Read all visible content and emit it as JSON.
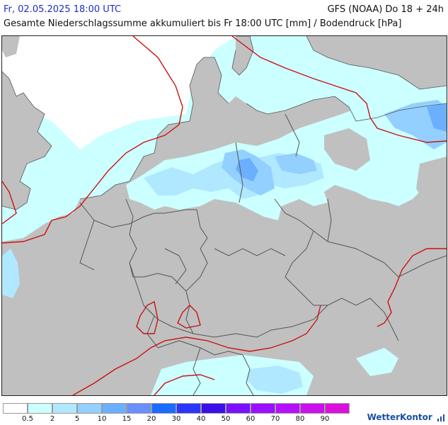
{
  "header": {
    "date": "Fr, 02.05.2025 18:00 UTC",
    "model": "GFS (NOAA) Do 18 + 24h",
    "subtitle": "Gesamte Niederschlagssumme akkumuliert bis Fr 18:00 UTC [mm] / Bodendruck [hPa]"
  },
  "legend": {
    "colors": [
      "#ffffff",
      "#ccffff",
      "#b0e8ff",
      "#93d0ff",
      "#6ab0ff",
      "#6a8fff",
      "#1a6bff",
      "#2a35ff",
      "#3a10e8",
      "#7a10ff",
      "#9a10ff",
      "#b410ff",
      "#cc10ee",
      "#dc10dc"
    ],
    "labels": [
      "0.5",
      "2",
      "5",
      "10",
      "15",
      "20",
      "30",
      "40",
      "50",
      "60",
      "70",
      "80",
      "90"
    ]
  },
  "brand": "WetterKontor",
  "map": {
    "colors": {
      "sea": "#ffffff",
      "land": "#c0c0c0",
      "precip_light": "#ccffff",
      "precip_2": "#b0e8ff",
      "precip_5": "#93d0ff",
      "precip_10": "#6ab0ff",
      "isobar": "#cc1111",
      "border": "#555555"
    }
  }
}
